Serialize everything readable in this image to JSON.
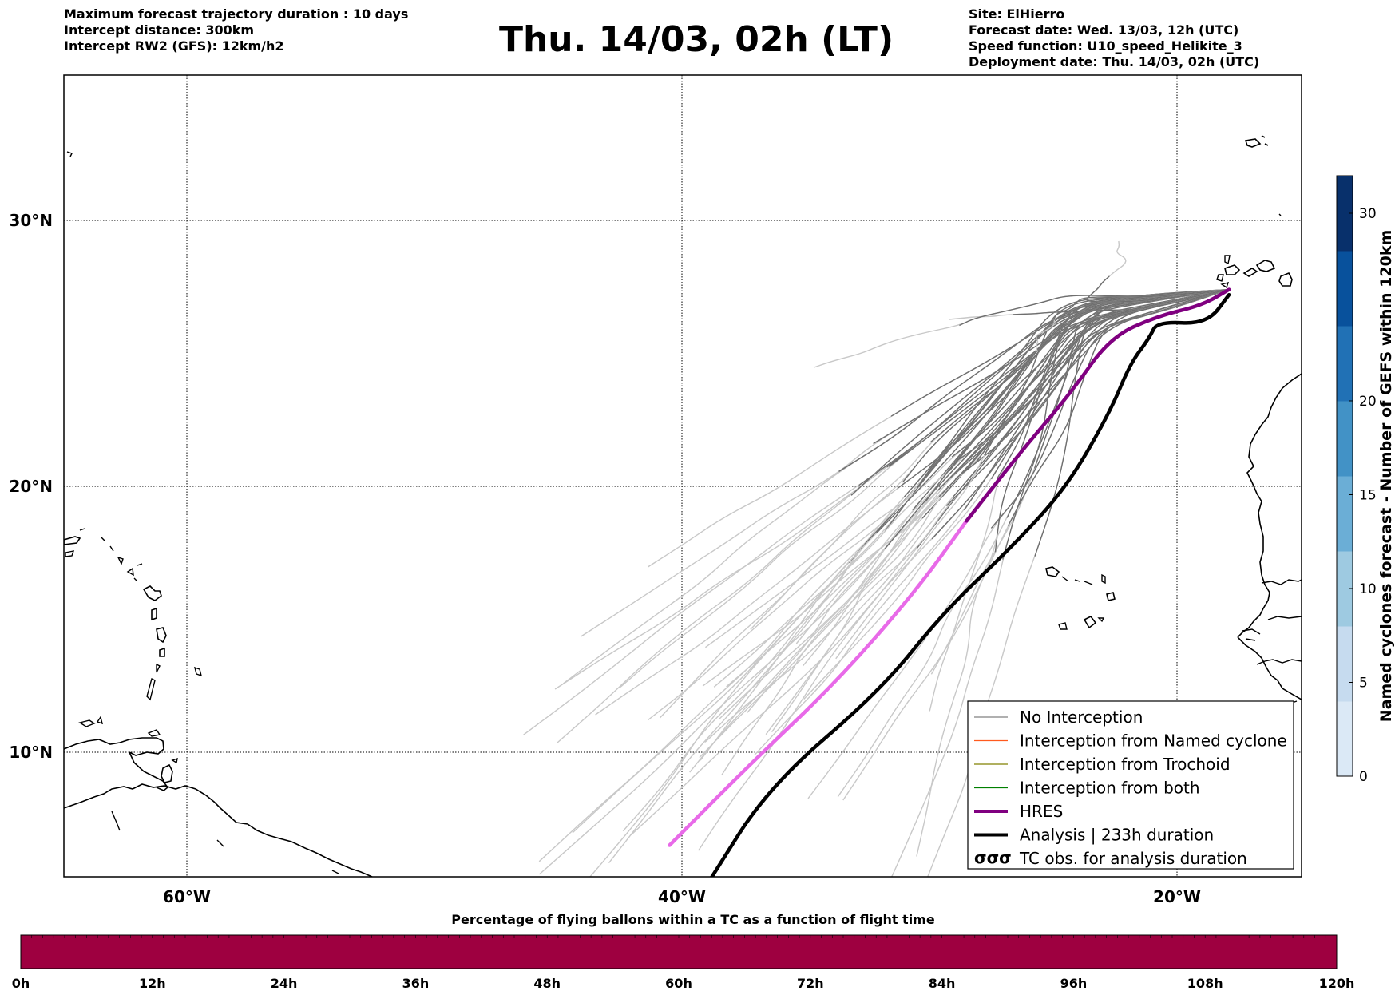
{
  "header_left": [
    "Maximum forecast trajectory duration : 10 days",
    "Intercept distance: 300km",
    "Intercept RW2 (GFS):  12km/h2"
  ],
  "header_right": [
    "Site: ElHierro",
    "Forecast date: Wed. 13/03, 12h (UTC)",
    "Speed function: U10_speed_Helikite_3",
    "Deployment date: Thu. 14/03, 02h (UTC)"
  ],
  "title": "Thu. 14/03, 02h (LT)",
  "map": {
    "lon_range": [
      -65,
      15
    ],
    "lat_range": [
      5,
      34.5
    ],
    "lon_ticks": [
      {
        "value": -60,
        "label": "60°W"
      },
      {
        "value": -40,
        "label": "40°W"
      },
      {
        "value": -20,
        "label": "20°W"
      }
    ],
    "lat_ticks": [
      {
        "value": 10,
        "label": "10°N"
      },
      {
        "value": 20,
        "label": "20°N"
      },
      {
        "value": 30,
        "label": "30°N"
      }
    ],
    "gridlines": "dotted"
  },
  "legend": {
    "position": "lower-right",
    "items": [
      {
        "label": "No Interception",
        "color": "#808080",
        "kind": "line"
      },
      {
        "label": "Interception from Named cyclone",
        "color": "#ff5a1e",
        "kind": "line"
      },
      {
        "label": "Interception from Trochoid",
        "color": "#808000",
        "kind": "line"
      },
      {
        "label": "Interception from both",
        "color": "#008000",
        "kind": "line"
      },
      {
        "label": "HRES",
        "color": "#800080",
        "kind": "thick"
      },
      {
        "label": "Analysis | 233h duration",
        "color": "#000000",
        "kind": "thick"
      },
      {
        "label": "TC obs. for analysis duration",
        "color": "#000000",
        "kind": "tc"
      }
    ]
  },
  "colorbar": {
    "title": "Named cyclones forecast - Number of GEFS within 120km",
    "min": 0,
    "max": 32,
    "ticks": [
      0,
      5,
      10,
      15,
      20,
      30
    ],
    "colors": [
      "#dbe9f6",
      "#c6dbef",
      "#9ecae1",
      "#6baed6",
      "#4292c6",
      "#2171b5",
      "#08519c",
      "#08306b"
    ]
  },
  "bottom_bar": {
    "title": "Percentage of flying ballons within a TC as a function of flight time",
    "fill_color": "#9e0040",
    "ticks": [
      "0h",
      "12h",
      "24h",
      "36h",
      "48h",
      "60h",
      "72h",
      "84h",
      "96h",
      "108h",
      "120h"
    ]
  },
  "chart_data": {
    "type": "line",
    "series": [
      {
        "name": "HRES",
        "color": "#800080",
        "points": [
          [
            -40.5,
            6.5
          ],
          [
            -37.3,
            9.5
          ],
          [
            -33.8,
            12.6
          ],
          [
            -30.6,
            16.0
          ],
          [
            -28.5,
            18.7
          ],
          [
            -26.4,
            21.2
          ],
          [
            -24.3,
            23.5
          ],
          [
            -22.7,
            25.6
          ],
          [
            -20.8,
            26.4
          ],
          [
            -19.0,
            26.8
          ],
          [
            -17.9,
            27.4
          ]
        ]
      },
      {
        "name": "Analysis | 233h duration",
        "color": "#000000",
        "points": [
          [
            -39.0,
            5.0
          ],
          [
            -36.5,
            8.7
          ],
          [
            -32.0,
            12.3
          ],
          [
            -29.4,
            15.3
          ],
          [
            -26.8,
            17.6
          ],
          [
            -24.5,
            19.9
          ],
          [
            -22.7,
            22.8
          ],
          [
            -21.9,
            24.6
          ],
          [
            -21.1,
            25.6
          ],
          [
            -20.8,
            26.2
          ],
          [
            -18.8,
            26.1
          ],
          [
            -17.9,
            27.2
          ]
        ]
      }
    ]
  }
}
